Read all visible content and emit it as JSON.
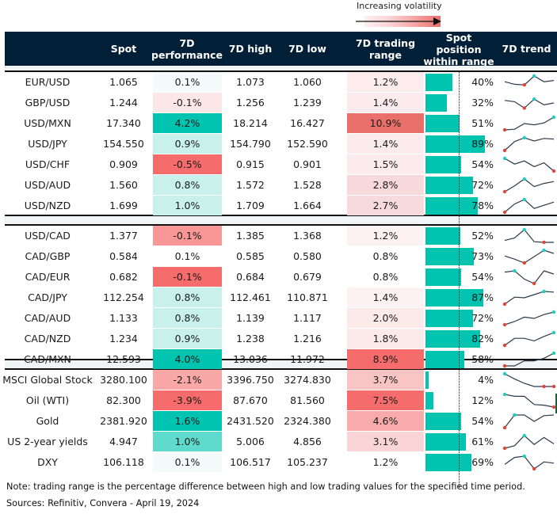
{
  "legend": {
    "label": "Increasing volatility",
    "arrow_icon": "right-arrow-icon"
  },
  "header": {
    "columns": [
      {
        "key": "name",
        "label": ""
      },
      {
        "key": "spot",
        "label": "Spot"
      },
      {
        "key": "perf",
        "label": "7D performance"
      },
      {
        "key": "high",
        "label": "7D high"
      },
      {
        "key": "low",
        "label": "7D low"
      },
      {
        "key": "range",
        "label": "7D trading range"
      },
      {
        "key": "pos",
        "label": "Spot position within range"
      },
      {
        "key": "trend",
        "label": "7D trend"
      }
    ]
  },
  "colors": {
    "header_bg": "#021f38",
    "position_bar": "#00c4b0",
    "spark_line": "#2b3a4a",
    "spark_high_marker": "#1fcfbd",
    "spark_low_marker": "#e0453a",
    "section_gap": "#f0f4f5"
  },
  "groups": [
    {
      "rows": [
        {
          "name": "EUR/USD",
          "spot": "1.065",
          "perf": "0.1%",
          "high": "1.073",
          "low": "1.060",
          "range": "1.2%",
          "pos": "40%",
          "pos_value": 0.4,
          "perf_bg": "#f5fbfc",
          "range_bg": "#fcecee",
          "trend": [
            0.55,
            0.35,
            0.3,
            1.0,
            0.55,
            0.65
          ],
          "trend_high": 3,
          "trend_low": 2
        },
        {
          "name": "GBP/USD",
          "spot": "1.244",
          "perf": "-0.1%",
          "high": "1.256",
          "low": "1.239",
          "range": "1.4%",
          "pos": "32%",
          "pos_value": 0.32,
          "perf_bg": "#fce7e8",
          "range_bg": "#fcebee",
          "trend": [
            0.7,
            0.6,
            0.1,
            0.8,
            0.35,
            0.5
          ],
          "trend_high": 3,
          "trend_low": 2
        },
        {
          "name": "USD/MXN",
          "spot": "17.340",
          "perf": "4.2%",
          "high": "18.214",
          "low": "16.427",
          "range": "10.9%",
          "pos": "51%",
          "pos_value": 0.51,
          "perf_bg": "#00c4b0",
          "range_bg": "#e9706a",
          "trend": [
            0.0,
            0.05,
            0.5,
            0.4,
            0.55,
            1.0
          ],
          "trend_high": 5,
          "trend_low": 0
        },
        {
          "name": "USD/JPY",
          "spot": "154.550",
          "perf": "0.9%",
          "high": "154.790",
          "low": "152.590",
          "range": "1.4%",
          "pos": "89%",
          "pos_value": 0.89,
          "perf_bg": "#c9f1ec",
          "range_bg": "#fcebee",
          "trend": [
            0.0,
            0.7,
            1.0,
            0.75,
            0.95,
            0.9
          ],
          "trend_high": 2,
          "trend_low": 0
        },
        {
          "name": "USD/CHF",
          "spot": "0.909",
          "perf": "-0.5%",
          "high": "0.915",
          "low": "0.901",
          "range": "1.5%",
          "pos": "54%",
          "pos_value": 0.54,
          "perf_bg": "#f66b6b",
          "range_bg": "#fcebee",
          "trend": [
            1.0,
            0.55,
            0.8,
            0.35,
            0.65,
            0.0
          ],
          "trend_high": 0,
          "trend_low": 5
        },
        {
          "name": "USD/AUD",
          "spot": "1.560",
          "perf": "0.8%",
          "high": "1.572",
          "low": "1.528",
          "range": "2.8%",
          "pos": "72%",
          "pos_value": 0.72,
          "perf_bg": "#c9f1ec",
          "range_bg": "#f7d9db",
          "trend": [
            0.0,
            0.45,
            1.0,
            0.4,
            0.65,
            0.8
          ],
          "trend_high": 2,
          "trend_low": 0
        },
        {
          "name": "USD/NZD",
          "spot": "1.699",
          "perf": "1.0%",
          "high": "1.709",
          "low": "1.664",
          "range": "2.7%",
          "pos": "78%",
          "pos_value": 0.78,
          "perf_bg": "#c9f1ec",
          "range_bg": "#f7dadc",
          "trend": [
            0.0,
            0.65,
            1.0,
            0.3,
            0.55,
            0.8
          ],
          "trend_high": 2,
          "trend_low": 0
        }
      ]
    },
    {
      "rows": [
        {
          "name": "USD/CAD",
          "spot": "1.377",
          "perf": "-0.1%",
          "high": "1.385",
          "low": "1.368",
          "range": "1.2%",
          "pos": "52%",
          "pos_value": 0.52,
          "perf_bg": "#f99696",
          "range_bg": "#fdf2f3",
          "trend": [
            0.15,
            0.35,
            1.0,
            0.05,
            0.0,
            0.0
          ],
          "trend_high": 2,
          "trend_low": 4
        },
        {
          "name": "CAD/GBP",
          "spot": "0.584",
          "perf": "0.1%",
          "high": "0.585",
          "low": "0.580",
          "range": "0.8%",
          "pos": "73%",
          "pos_value": 0.73,
          "perf_bg": "#ffffff",
          "range_bg": "#ffffff",
          "trend": [
            0.55,
            0.3,
            0.0,
            0.5,
            1.0,
            0.75
          ],
          "trend_high": 4,
          "trend_low": 2
        },
        {
          "name": "CAD/EUR",
          "spot": "0.682",
          "perf": "-0.1%",
          "high": "0.684",
          "low": "0.679",
          "range": "0.8%",
          "pos": "54%",
          "pos_value": 0.54,
          "perf_bg": "#f66b6b",
          "range_bg": "#ffffff",
          "trend": [
            0.9,
            1.0,
            0.35,
            0.0,
            1.0,
            0.75
          ],
          "trend_high": 1,
          "trend_low": 3
        },
        {
          "name": "CAD/JPY",
          "spot": "112.254",
          "perf": "0.8%",
          "high": "112.461",
          "low": "110.871",
          "range": "1.4%",
          "pos": "87%",
          "pos_value": 0.87,
          "perf_bg": "#c9f1ec",
          "range_bg": "#fdf2f3",
          "trend": [
            0.0,
            0.55,
            0.5,
            0.75,
            1.0,
            0.95
          ],
          "trend_high": 4,
          "trend_low": 0
        },
        {
          "name": "CAD/AUD",
          "spot": "1.133",
          "perf": "0.8%",
          "high": "1.139",
          "low": "1.117",
          "range": "2.0%",
          "pos": "72%",
          "pos_value": 0.72,
          "perf_bg": "#c9f1ec",
          "range_bg": "#fce9ea",
          "trend": [
            0.0,
            0.25,
            0.6,
            0.5,
            0.8,
            1.0
          ],
          "trend_high": 5,
          "trend_low": 0
        },
        {
          "name": "CAD/NZD",
          "spot": "1.234",
          "perf": "0.9%",
          "high": "1.238",
          "low": "1.216",
          "range": "1.8%",
          "pos": "82%",
          "pos_value": 0.82,
          "perf_bg": "#c9f1ec",
          "range_bg": "#fce9ea",
          "trend": [
            0.0,
            0.55,
            0.55,
            0.35,
            0.7,
            1.0
          ],
          "trend_high": 5,
          "trend_low": 0
        },
        {
          "name": "CAD/MXN",
          "spot": "12.593",
          "perf": "4.0%",
          "high": "13.036",
          "low": "11.972",
          "range": "8.9%",
          "pos": "58%",
          "pos_value": 0.58,
          "perf_bg": "#00c4b0",
          "range_bg": "#f66b6b",
          "trend": [
            0.0,
            0.0,
            0.4,
            0.4,
            0.6,
            1.0
          ],
          "trend_high": 5,
          "trend_low": 0
        }
      ]
    },
    {
      "rows": [
        {
          "name": "MSCI Global Stock",
          "spot": "3280.100",
          "perf": "-2.1%",
          "high": "3396.750",
          "low": "3274.830",
          "range": "3.7%",
          "pos": "4%",
          "pos_value": 0.04,
          "perf_bg": "#f9a7a7",
          "range_bg": "#f9c4c4",
          "trend": [
            1.0,
            0.6,
            0.25,
            0.0,
            0.0,
            0.0
          ],
          "trend_high": 0,
          "trend_low": 5,
          "trend_low_extra": 4
        },
        {
          "name": "Oil (WTI)",
          "spot": "82.300",
          "perf": "-3.9%",
          "high": "87.670",
          "low": "81.560",
          "range": "7.5%",
          "pos": "12%",
          "pos_value": 0.12,
          "perf_bg": "#f66b6b",
          "range_bg": "#f66b6b",
          "trend": [
            1.0,
            0.85,
            0.85,
            0.2,
            0.15,
            0.0
          ],
          "trend_high": 0,
          "trend_low": 5
        },
        {
          "name": "Gold",
          "spot": "2381.920",
          "perf": "1.6%",
          "high": "2431.520",
          "low": "2324.380",
          "range": "4.6%",
          "pos": "54%",
          "pos_value": 0.54,
          "perf_bg": "#00c4b0",
          "range_bg": "#f8abab",
          "trend": [
            0.0,
            1.0,
            1.0,
            0.5,
            0.95,
            1.0
          ],
          "trend_high": 1,
          "trend_low": 0
        },
        {
          "name": "US 2-year yields",
          "spot": "4.947",
          "perf": "1.0%",
          "high": "5.006",
          "low": "4.856",
          "range": "3.1%",
          "pos": "61%",
          "pos_value": 0.61,
          "perf_bg": "#5edbcd",
          "range_bg": "#fbd5d6",
          "trend": [
            0.0,
            0.2,
            1.0,
            0.3,
            0.85,
            0.35
          ],
          "trend_high": 2,
          "trend_low": 0
        },
        {
          "name": "DXY",
          "spot": "106.118",
          "perf": "0.1%",
          "high": "106.517",
          "low": "105.237",
          "range": "1.2%",
          "pos": "69%",
          "pos_value": 0.69,
          "perf_bg": "#f5fbfc",
          "range_bg": "#ffffff",
          "trend": [
            0.35,
            0.9,
            1.0,
            0.0,
            0.55,
            0.45
          ],
          "trend_high": 2,
          "trend_low": 3
        }
      ]
    }
  ],
  "footer": {
    "note": "Note: trading range is the percentage difference between high and low trading values for the specified time period.",
    "sources": "Sources: Refinitiv, Convera - April 19, 2024"
  }
}
